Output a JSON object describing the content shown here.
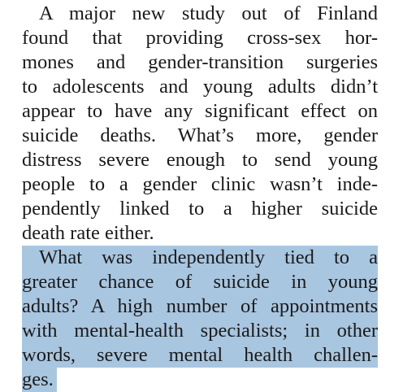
{
  "paragraphs": [
    {
      "lines": [
        "A major new study out of Finland",
        "found that providing cross-sex hor-",
        "mones and gender-transition surgeries",
        "to adolescents and young adults didn’t",
        "appear to have any significant effect on",
        "suicide deaths. What’s more, gender",
        "distress severe enough to send young",
        "people to a gender clinic wasn’t inde-",
        "pendently linked to a higher suicide",
        "death rate either."
      ]
    },
    {
      "lines": [
        "What was independently tied to a",
        "greater chance of suicide in young",
        "adults? A high number of appointments",
        "with mental-health specialists; in other",
        "words, severe mental health challen-",
        "ges."
      ]
    }
  ]
}
